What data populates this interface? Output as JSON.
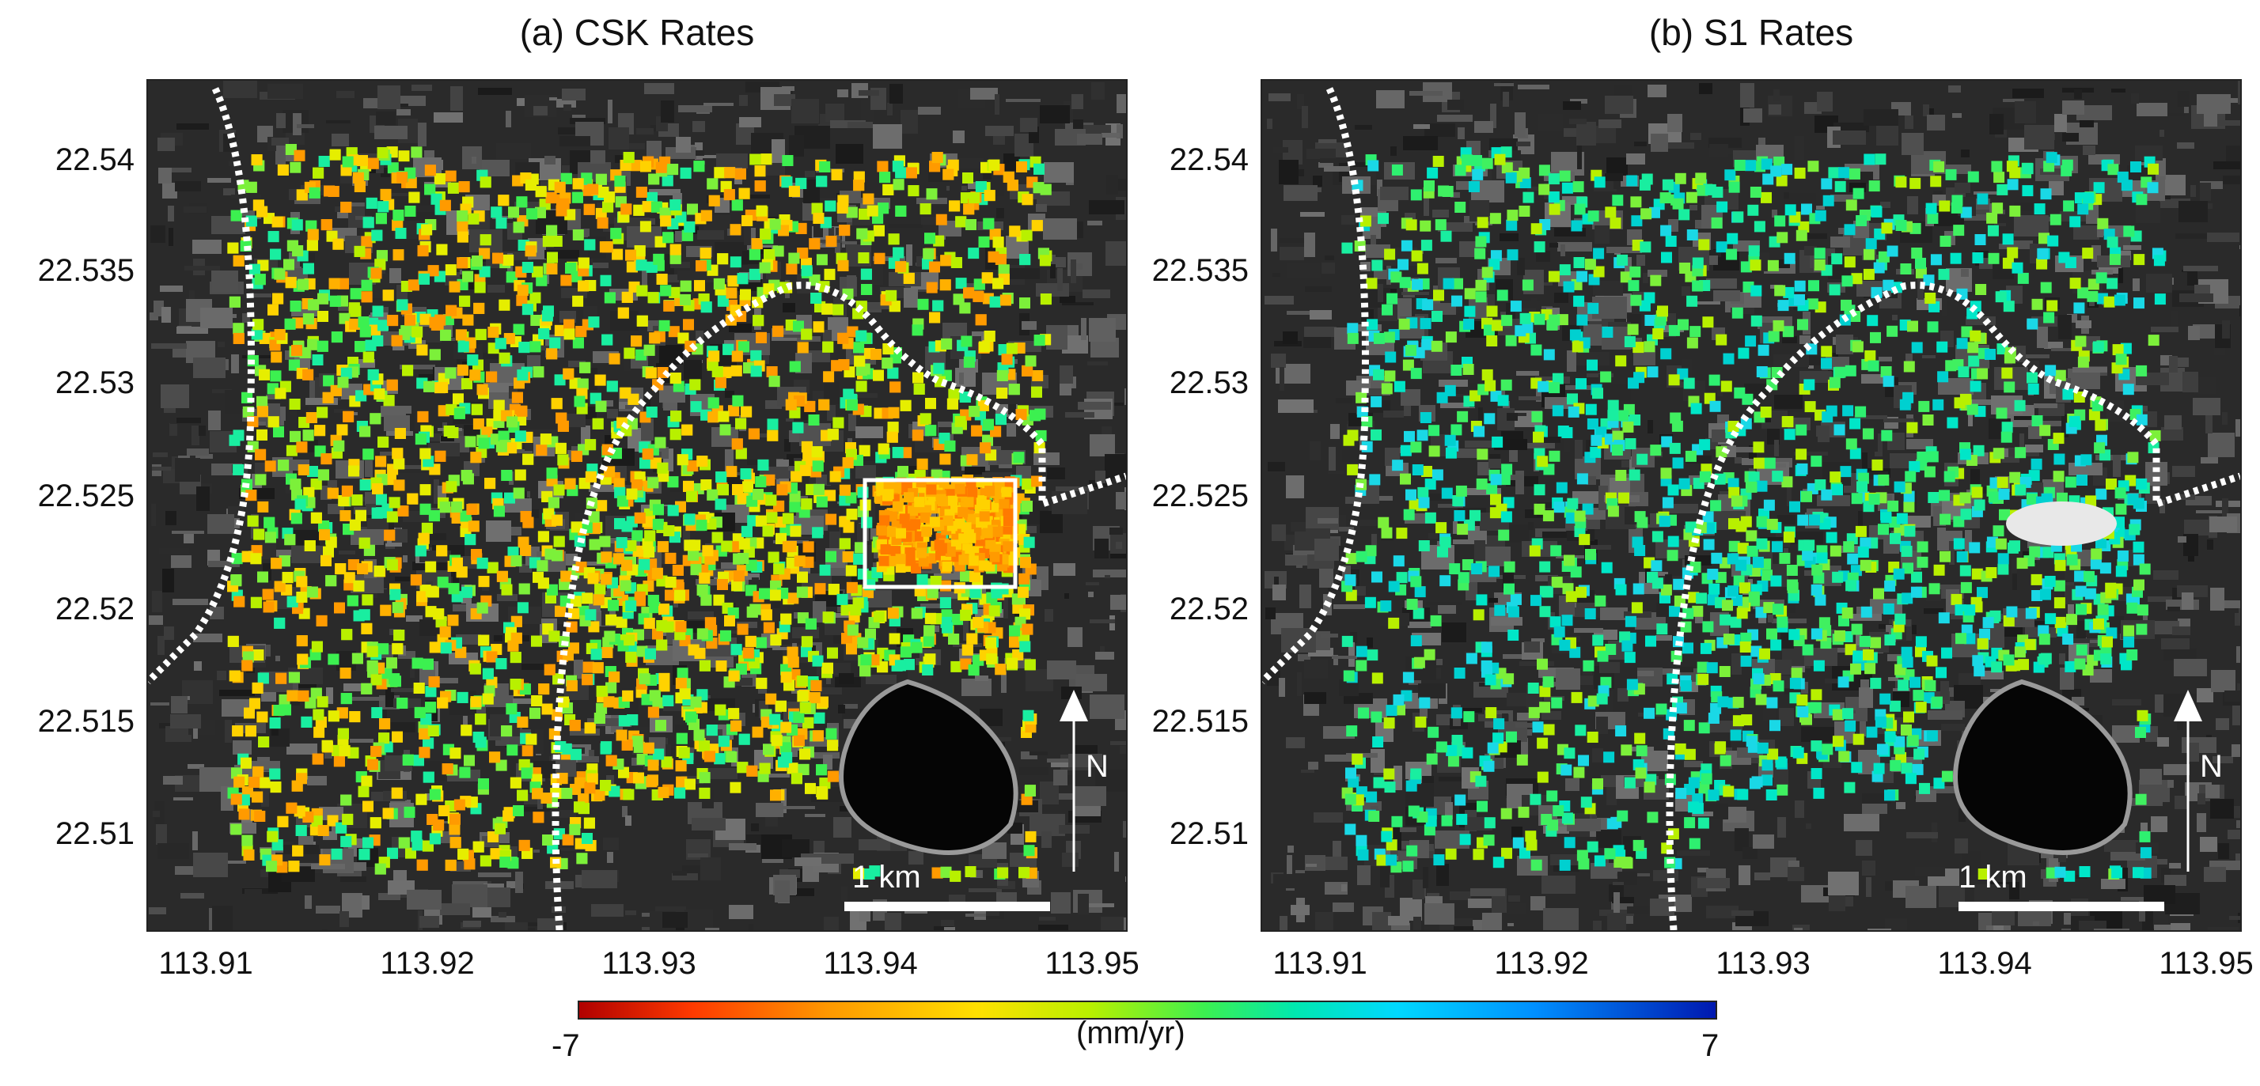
{
  "panels": [
    {
      "id": "csk",
      "title": "(a) CSK Rates",
      "density": 1.0,
      "palette": [
        "#ffd200",
        "#e6ee00",
        "#b8f000",
        "#7cf03a",
        "#3cf050",
        "#19eea0",
        "#ffb000",
        "#ff9a00"
      ],
      "highlight_box": true
    },
    {
      "id": "s1",
      "title": "(b) S1 Rates",
      "density": 0.38,
      "palette": [
        "#2ef070",
        "#19eea0",
        "#00e6c8",
        "#1ad8e6",
        "#7cf03a",
        "#b8f000",
        "#00d0d0",
        "#40f060"
      ],
      "highlight_box": false
    }
  ],
  "axes": {
    "y_ticks": [
      "22.54",
      "22.535",
      "22.53",
      "22.525",
      "22.52",
      "22.515",
      "22.51"
    ],
    "x_ticks": [
      "113.91",
      "113.92",
      "113.93",
      "113.94",
      "113.95"
    ]
  },
  "map_labels": {
    "scale_bar": "1 km",
    "north": "N"
  },
  "colorbar": {
    "min_label": "-7",
    "max_label": "7",
    "unit": "(mm/yr)",
    "min": -7,
    "max": 7,
    "colors": [
      "#b00000",
      "#ff3a00",
      "#ff9900",
      "#ffe000",
      "#b8f000",
      "#3cf050",
      "#00e8b0",
      "#00d8ff",
      "#0090ff",
      "#0018b0"
    ]
  }
}
